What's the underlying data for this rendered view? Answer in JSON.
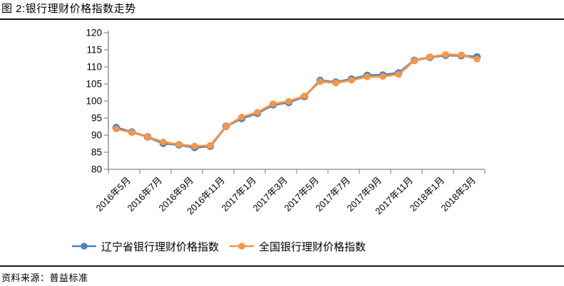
{
  "title": "图 2:银行理财价格指数走势",
  "source": "资料来源：普益标准",
  "chart_data": {
    "type": "line",
    "title": "银行理财价格指数走势",
    "categories": [
      "2016年5月",
      "2016年6月",
      "2016年7月",
      "2016年8月",
      "2016年9月",
      "2016年10月",
      "2016年11月",
      "2016年12月",
      "2017年1月",
      "2017年2月",
      "2017年3月",
      "2017年4月",
      "2017年5月",
      "2017年6月",
      "2017年7月",
      "2017年8月",
      "2017年9月",
      "2017年10月",
      "2017年11月",
      "2017年12月",
      "2018年1月",
      "2018年2月",
      "2018年3月",
      "2018年4月"
    ],
    "x_tick_labels": [
      "2016年5月",
      "2016年7月",
      "2016年9月",
      "2016年11月",
      "2017年1月",
      "2017年3月",
      "2017年5月",
      "2017年7月",
      "2017年9月",
      "2017年11月",
      "2018年1月",
      "2018年3月"
    ],
    "series": [
      {
        "name": "辽宁省银行理财价格指数",
        "color": "#4F81BD",
        "values": [
          92.2,
          90.9,
          89.5,
          87.6,
          87.2,
          86.4,
          86.8,
          92.6,
          94.9,
          96.4,
          98.9,
          99.6,
          101.3,
          106.0,
          105.5,
          106.4,
          107.5,
          107.6,
          108.2,
          111.9,
          112.8,
          113.4,
          113.3,
          112.9
        ]
      },
      {
        "name": "全国银行理财价格指数",
        "color": "#F79646",
        "values": [
          91.8,
          90.8,
          89.5,
          88.0,
          87.3,
          86.8,
          87.0,
          92.6,
          95.3,
          96.7,
          99.2,
          99.9,
          101.5,
          105.7,
          105.3,
          106.1,
          107.1,
          107.2,
          107.8,
          111.8,
          112.9,
          113.6,
          113.5,
          112.3
        ]
      }
    ],
    "ylim": [
      80,
      120
    ],
    "ytick_step": 5,
    "ytick_labels": [
      "80",
      "85",
      "90",
      "95",
      "100",
      "105",
      "110",
      "115",
      "120"
    ],
    "grid": false,
    "legend_position": "bottom",
    "axis_color": "#9A9A9A",
    "marker": "circle"
  }
}
